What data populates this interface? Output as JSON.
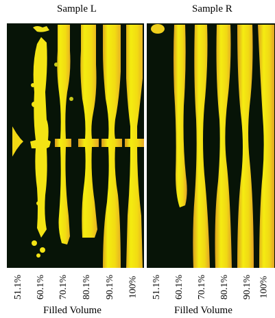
{
  "samples": [
    {
      "title": "Sample L",
      "x_axis_label": "Filled Volume",
      "fill_levels": [
        "51.1%",
        "60.1%",
        "70.1%",
        "80.1%",
        "90.1%",
        "100%"
      ]
    },
    {
      "title": "Sample R",
      "x_axis_label": "Filled Volume",
      "fill_levels": [
        "51.1%",
        "60.1%",
        "70.1%",
        "80.1%",
        "90.1%",
        "100%"
      ]
    }
  ],
  "colors": {
    "background": "#071407",
    "metal_yellow": "#f4ec10",
    "metal_orange": "#e9a826",
    "edge_green": "#6f9a2a"
  }
}
